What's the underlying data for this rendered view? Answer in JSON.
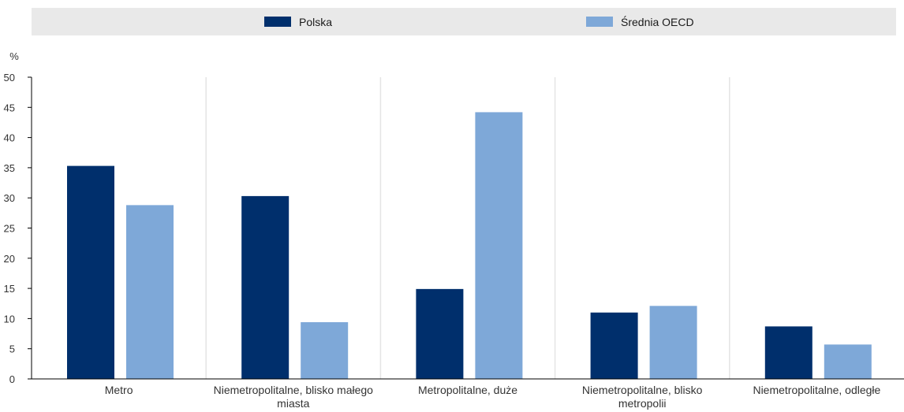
{
  "chart_data": {
    "type": "bar",
    "ylabel": "%",
    "ylim": [
      0,
      50
    ],
    "yticks": [
      "0",
      "5",
      "10",
      "15",
      "20",
      "25",
      "30",
      "35",
      "40",
      "45",
      "50"
    ],
    "grid": true,
    "legend_position": "top",
    "categories": [
      [
        "Metro"
      ],
      [
        "Niemetropolitalne, blisko małego",
        "miasta"
      ],
      [
        "Metropolitalne, duże"
      ],
      [
        "Niemetropolitalne, blisko",
        "metropolii"
      ],
      [
        "Niemetropolitalne, odległe"
      ]
    ],
    "series": [
      {
        "name": "Polska",
        "color": "#002f6c",
        "values": [
          35.3,
          30.3,
          14.9,
          11.0,
          8.7
        ]
      },
      {
        "name": "Średnia OECD",
        "color": "#7ea8d8",
        "values": [
          28.8,
          9.4,
          44.2,
          12.1,
          5.7
        ]
      }
    ]
  }
}
